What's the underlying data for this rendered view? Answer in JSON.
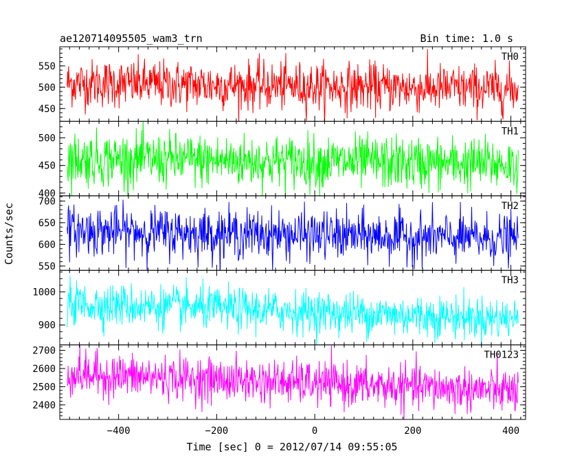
{
  "header": {
    "title": "ae120714095505_wam3_trn",
    "bin_time": "Bin time: 1.0 s"
  },
  "chart_data": {
    "type": "line",
    "title": "ae120714095505_wam3_trn",
    "xlabel": "Time [sec] 0 = 2012/07/14 09:55:05",
    "ylabel": "Counts/sec",
    "xlim": [
      -520,
      430
    ],
    "x_ticks": [
      -400,
      -200,
      0,
      200,
      400
    ],
    "x_range_of_data": [
      -505,
      415
    ],
    "bin_time_s": 1.0,
    "grid": false,
    "panels": [
      {
        "name": "TH0",
        "color": "#ff0000",
        "ylim": [
          420,
          595
        ],
        "y_ticks": [
          450,
          500,
          550
        ],
        "trend_start": 510,
        "trend_end": 495,
        "noise_amplitude": 28
      },
      {
        "name": "TH1",
        "color": "#00ff00",
        "ylim": [
          395,
          530
        ],
        "y_ticks": [
          400,
          450,
          500
        ],
        "trend_start": 462,
        "trend_end": 452,
        "noise_amplitude": 24
      },
      {
        "name": "TH2",
        "color": "#0000ff",
        "ylim": [
          540,
          712
        ],
        "y_ticks": [
          550,
          600,
          650,
          700
        ],
        "trend_start": 632,
        "trend_end": 612,
        "noise_amplitude": 28
      },
      {
        "name": "TH3",
        "color": "#00ffff",
        "ylim": [
          840,
          1065
        ],
        "y_ticks": [
          900,
          1000
        ],
        "trend_start": 965,
        "trend_end": 918,
        "noise_amplitude": 32
      },
      {
        "name": "TH0123",
        "color": "#ff00ff",
        "ylim": [
          2320,
          2730
        ],
        "y_ticks": [
          2400,
          2500,
          2600,
          2700
        ],
        "trend_start": 2570,
        "trend_end": 2475,
        "noise_amplitude": 60
      }
    ]
  }
}
